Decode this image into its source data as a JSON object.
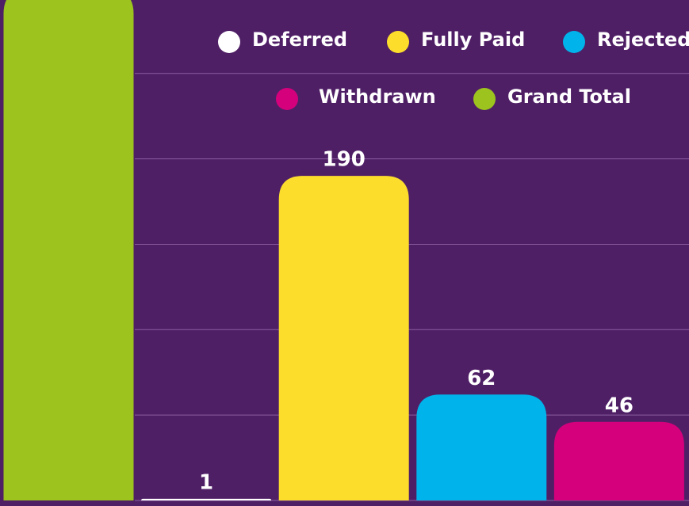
{
  "chart_data": {
    "type": "bar",
    "categories": [
      "Grand Total",
      "Deferred",
      "Fully Paid",
      "Rejected",
      "Withdrawn"
    ],
    "values": [
      299,
      1,
      190,
      62,
      46
    ],
    "colors": [
      "#9cc31e",
      "#ffffff",
      "#fddd2c",
      "#00b3ea",
      "#d5007c"
    ],
    "legend_order": [
      1,
      2,
      3,
      4,
      0
    ],
    "ylim": [
      0,
      293
    ],
    "yticks": [
      0,
      50,
      100,
      150,
      200,
      250
    ],
    "grid": true
  }
}
